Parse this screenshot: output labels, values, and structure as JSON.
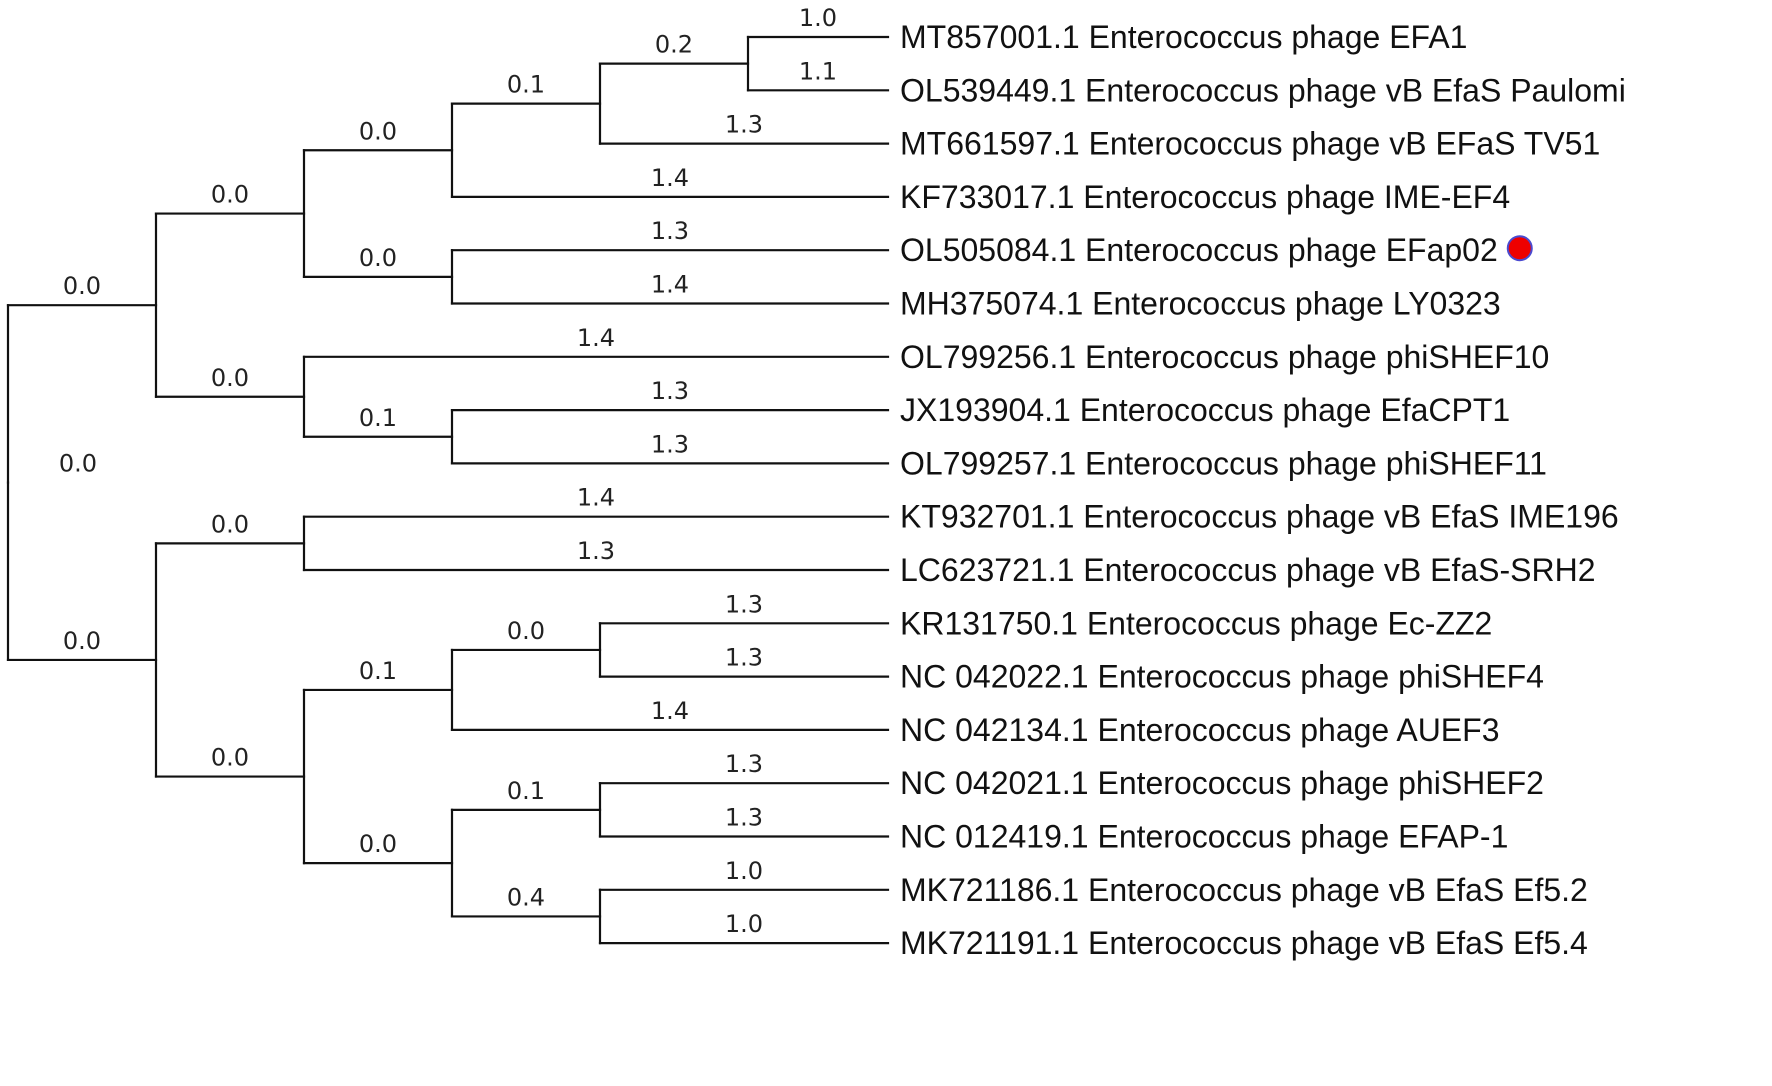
{
  "marker_color": "#ee0000",
  "tree": {
    "label": "0.0",
    "children": [
      {
        "label": "0.0",
        "children": [
          {
            "label": "0.0",
            "children": [
              {
                "label": "0.0",
                "children": [
                  {
                    "label": "0.1",
                    "children": [
                      {
                        "label": "0.2",
                        "children": [
                          {
                            "name": "MT857001.1 Enterococcus phage EFA1",
                            "label": "1.0"
                          },
                          {
                            "name": "OL539449.1 Enterococcus phage vB EfaS Paulomi",
                            "label": "1.1"
                          }
                        ]
                      },
                      {
                        "name": "MT661597.1 Enterococcus phage vB EFaS TV51",
                        "label": "1.3"
                      }
                    ]
                  },
                  {
                    "name": "KF733017.1 Enterococcus phage IME-EF4",
                    "label": "1.4"
                  }
                ]
              },
              {
                "label": "0.0",
                "children": [
                  {
                    "name": "OL505084.1 Enterococcus phage EFap02",
                    "label": "1.3",
                    "marker": true
                  },
                  {
                    "name": "MH375074.1 Enterococcus phage LY0323",
                    "label": "1.4"
                  }
                ]
              }
            ]
          },
          {
            "label": "0.0",
            "children": [
              {
                "name": "OL799256.1 Enterococcus phage phiSHEF10",
                "label": "1.4"
              },
              {
                "label": "0.1",
                "children": [
                  {
                    "name": "JX193904.1 Enterococcus phage EfaCPT1",
                    "label": "1.3"
                  },
                  {
                    "name": "OL799257.1 Enterococcus phage phiSHEF11",
                    "label": "1.3"
                  }
                ]
              }
            ]
          }
        ]
      },
      {
        "label": "0.0",
        "children": [
          {
            "label": "0.0",
            "children": [
              {
                "name": "KT932701.1 Enterococcus phage vB EfaS IME196",
                "label": "1.4"
              },
              {
                "name": "LC623721.1 Enterococcus phage vB EfaS-SRH2",
                "label": "1.3"
              }
            ]
          },
          {
            "label": "0.0",
            "children": [
              {
                "label": "0.1",
                "children": [
                  {
                    "label": "0.0",
                    "children": [
                      {
                        "name": "KR131750.1 Enterococcus phage Ec-ZZ2",
                        "label": "1.3"
                      },
                      {
                        "name": "NC 042022.1 Enterococcus phage phiSHEF4",
                        "label": "1.3"
                      }
                    ]
                  },
                  {
                    "name": "NC 042134.1 Enterococcus phage AUEF3",
                    "label": "1.4"
                  }
                ]
              },
              {
                "label": "0.0",
                "children": [
                  {
                    "label": "0.1",
                    "children": [
                      {
                        "name": "NC 042021.1 Enterococcus phage phiSHEF2",
                        "label": "1.3"
                      },
                      {
                        "name": "NC 012419.1 Enterococcus phage EFAP-1",
                        "label": "1.3"
                      }
                    ]
                  },
                  {
                    "label": "0.4",
                    "children": [
                      {
                        "name": "MK721186.1 Enterococcus phage vB EfaS Ef5.2",
                        "label": "1.0"
                      },
                      {
                        "name": "MK721191.1 Enterococcus phage vB EfaS Ef5.4",
                        "label": "1.0"
                      }
                    ]
                  }
                ]
              }
            ]
          }
        ]
      }
    ]
  }
}
